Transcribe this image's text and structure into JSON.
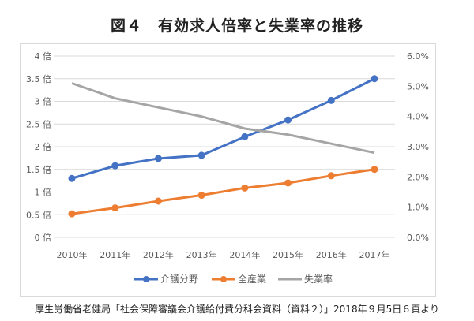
{
  "title": "図４　有効求人倍率と失業率の推移",
  "source": "厚生労働省老健局「社会保障審議会介護給付費分科会資料（資料２）」2018年９月5日６頁より",
  "chart_data": {
    "type": "line",
    "title": "図４　有効求人倍率と失業率の推移",
    "categories": [
      "2010年",
      "2011年",
      "2012年",
      "2013年",
      "2014年",
      "2015年",
      "2016年",
      "2017年"
    ],
    "y_left": {
      "ylim": [
        0,
        4
      ],
      "ticks": [
        "0 倍",
        "0.5 倍",
        "1 倍",
        "1.5 倍",
        "2 倍",
        "2.5 倍",
        "3 倍",
        "3.5 倍",
        "4 倍"
      ]
    },
    "y_right": {
      "ylim": [
        0,
        6
      ],
      "ticks": [
        "0.0%",
        "1.0%",
        "2.0%",
        "3.0%",
        "4.0%",
        "5.0%",
        "6.0%"
      ]
    },
    "grid": true,
    "legend_position": "bottom",
    "series": [
      {
        "name": "介護分野",
        "axis": "left",
        "color": "#4472c4",
        "markers": true,
        "values": [
          1.3,
          1.58,
          1.74,
          1.81,
          2.22,
          2.59,
          3.02,
          3.5
        ]
      },
      {
        "name": "全産業",
        "axis": "left",
        "color": "#ed7d31",
        "markers": true,
        "values": [
          0.52,
          0.65,
          0.8,
          0.93,
          1.09,
          1.2,
          1.36,
          1.5
        ]
      },
      {
        "name": "失業率",
        "axis": "right",
        "color": "#a5a5a5",
        "markers": false,
        "values": [
          5.1,
          4.6,
          4.3,
          4.0,
          3.6,
          3.4,
          3.1,
          2.8
        ]
      }
    ]
  }
}
